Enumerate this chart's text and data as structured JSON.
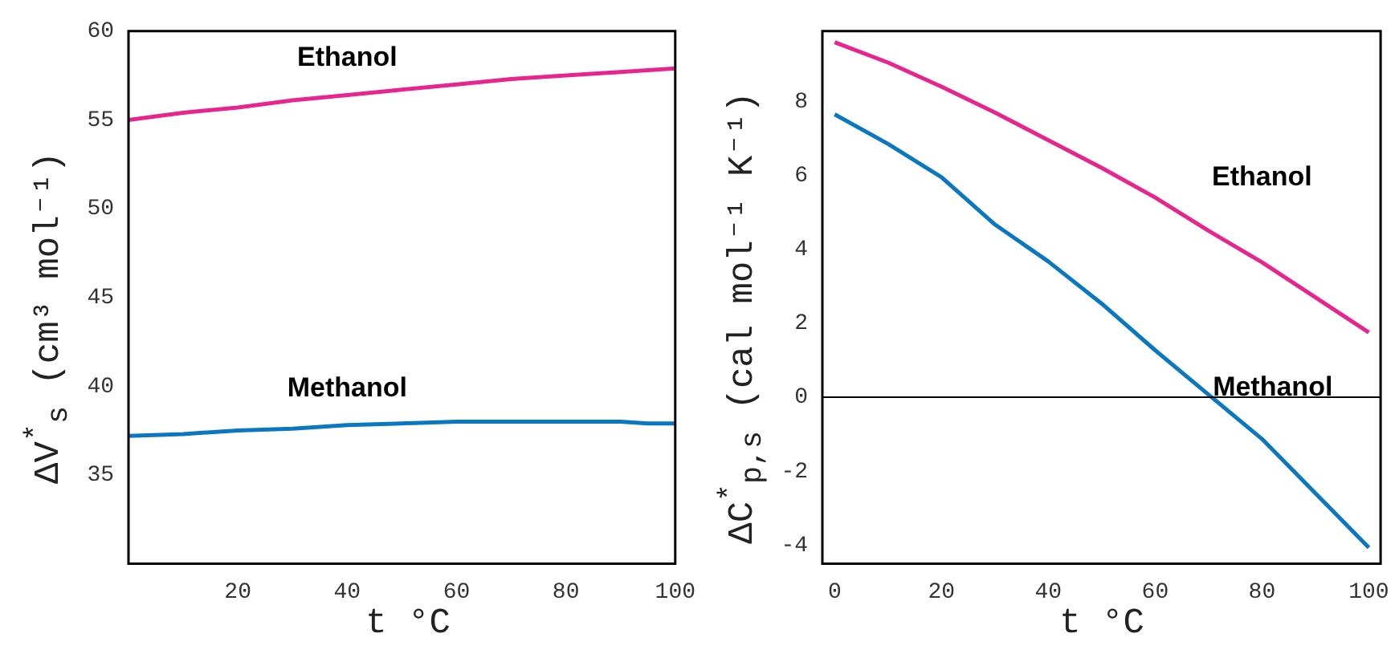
{
  "chart_data": [
    {
      "type": "line",
      "xlabel": "t °C",
      "ylabel": "ΔV$^{*}$$_{s}$ (cm³ mol⁻¹)",
      "x": [
        0,
        10,
        20,
        30,
        40,
        50,
        60,
        70,
        80,
        90,
        95,
        100
      ],
      "xlim": [
        0,
        100
      ],
      "xticks": [
        20,
        40,
        60,
        80,
        100
      ],
      "ylim": [
        30,
        60
      ],
      "yticks": [
        35,
        40,
        45,
        50,
        55,
        60
      ],
      "grid": false,
      "marker": "none",
      "series": [
        {
          "name": "Ethanol",
          "color": "#e8258f",
          "values": [
            55.0,
            55.4,
            55.7,
            56.1,
            56.4,
            56.7,
            57.0,
            57.3,
            57.5,
            57.7,
            57.8,
            57.9
          ]
        },
        {
          "name": "Methanol",
          "color": "#0a78c0",
          "values": [
            37.2,
            37.3,
            37.5,
            37.6,
            37.8,
            37.9,
            38.0,
            38.0,
            38.0,
            38.0,
            37.9,
            37.9
          ]
        }
      ]
    },
    {
      "type": "line",
      "xlabel": "t °C",
      "ylabel": "ΔC$^{*}$$_{p,s}$ (cal mol⁻¹ K⁻¹)",
      "x": [
        0,
        10,
        20,
        30,
        40,
        50,
        60,
        70,
        80,
        90,
        100
      ],
      "xlim": [
        -2.3,
        102.2
      ],
      "xticks": [
        0,
        20,
        40,
        60,
        80,
        100
      ],
      "ylim": [
        -4.5,
        9.9
      ],
      "yticks": [
        -4,
        -2,
        0,
        2,
        4,
        6,
        8
      ],
      "grid": false,
      "marker": "none",
      "ref_lines": [
        {
          "axis": "y",
          "value": 0,
          "color": "#000000"
        }
      ],
      "series": [
        {
          "name": "Ethanol",
          "color": "#e8258f",
          "values": [
            9.6,
            9.05,
            8.4,
            7.7,
            6.95,
            6.2,
            5.4,
            4.5,
            3.65,
            2.7,
            1.75
          ]
        },
        {
          "name": "Methanol",
          "color": "#0a78c0",
          "values": [
            7.65,
            6.85,
            5.95,
            4.67,
            3.67,
            2.53,
            1.27,
            0.07,
            -1.13,
            -2.6,
            -4.07
          ]
        }
      ]
    }
  ]
}
